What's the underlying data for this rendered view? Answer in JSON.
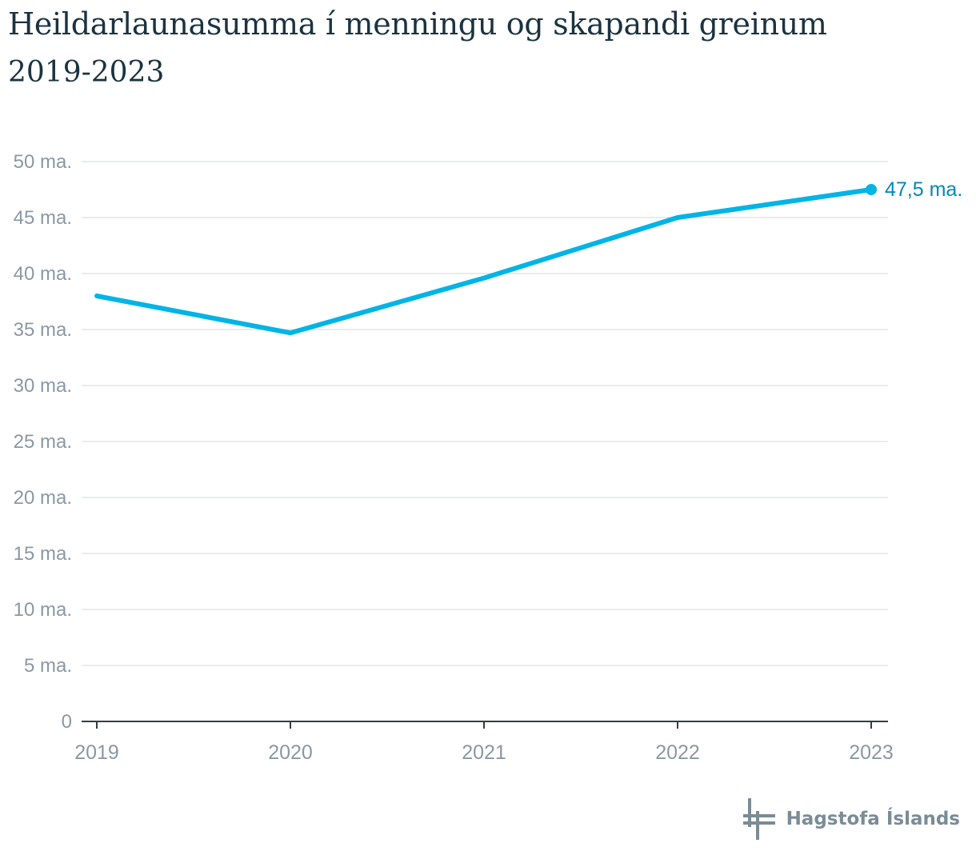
{
  "header": {
    "title": "Heildarlaunasumma í menningu og skapandi greinum",
    "subtitle": "2019-2023"
  },
  "chart_data": {
    "type": "line",
    "title": "Heildarlaunasumma í menningu og skapandi greinum",
    "subtitle": "2019-2023",
    "xlabel": "",
    "ylabel": "",
    "categories": [
      "2019",
      "2020",
      "2021",
      "2022",
      "2023"
    ],
    "series": [
      {
        "values": [
          38.0,
          34.7,
          39.6,
          45.0,
          47.5
        ],
        "color": "#00b4e6"
      }
    ],
    "y_ticks": [
      {
        "value": 0,
        "label": "0"
      },
      {
        "value": 5,
        "label": "5 ma."
      },
      {
        "value": 10,
        "label": "10 ma."
      },
      {
        "value": 15,
        "label": "15 ma."
      },
      {
        "value": 20,
        "label": "20 ma."
      },
      {
        "value": 25,
        "label": "25 ma."
      },
      {
        "value": 30,
        "label": "30 ma."
      },
      {
        "value": 35,
        "label": "35 ma."
      },
      {
        "value": 40,
        "label": "40 ma."
      },
      {
        "value": 45,
        "label": "45 ma."
      },
      {
        "value": 50,
        "label": "50 ma."
      }
    ],
    "ylim": [
      0,
      50
    ],
    "grid": true,
    "end_label": "47,5 ma.",
    "end_label_color": "#0088b8"
  },
  "logo": {
    "text": "Hagstofa Íslands",
    "color": "#7a8c95"
  }
}
